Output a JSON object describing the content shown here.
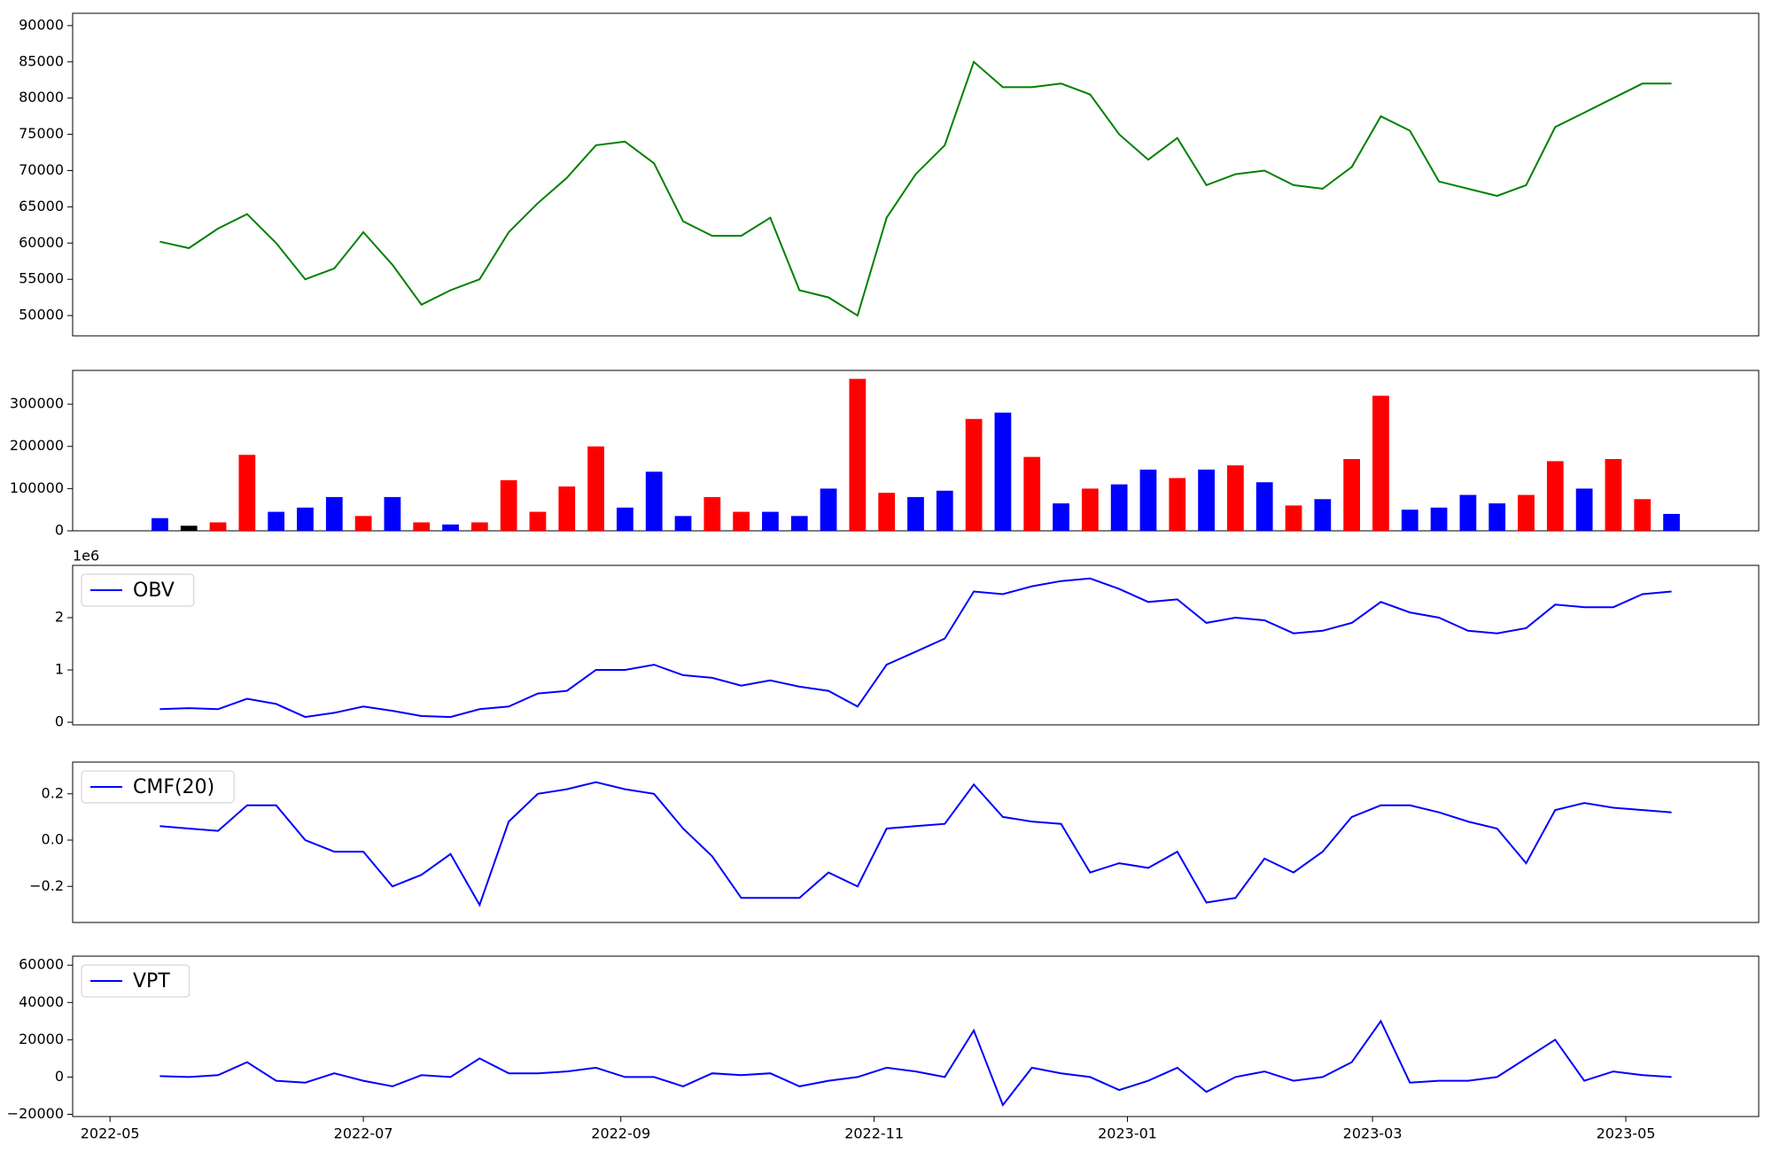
{
  "chart_data": [
    {
      "type": "line",
      "x": [
        "2022-05-13",
        "2022-05-20",
        "2022-05-27",
        "2022-06-03",
        "2022-06-10",
        "2022-06-17",
        "2022-06-24",
        "2022-07-01",
        "2022-07-08",
        "2022-07-15",
        "2022-07-22",
        "2022-07-29",
        "2022-08-05",
        "2022-08-12",
        "2022-08-19",
        "2022-08-26",
        "2022-09-02",
        "2022-09-09",
        "2022-09-16",
        "2022-09-23",
        "2022-09-30",
        "2022-10-07",
        "2022-10-14",
        "2022-10-21",
        "2022-10-28",
        "2022-11-04",
        "2022-11-11",
        "2022-11-18",
        "2022-11-25",
        "2022-12-02",
        "2022-12-09",
        "2022-12-16",
        "2022-12-23",
        "2022-12-30",
        "2023-01-06",
        "2023-01-13",
        "2023-01-20",
        "2023-01-27",
        "2023-02-03",
        "2023-02-10",
        "2023-02-17",
        "2023-02-24",
        "2023-03-03",
        "2023-03-10",
        "2023-03-17",
        "2023-03-24",
        "2023-03-31",
        "2023-04-07",
        "2023-04-14",
        "2023-04-21",
        "2023-04-28",
        "2023-05-05",
        "2023-05-12"
      ],
      "xlim": [
        "2022-04-22",
        "2023-06-02"
      ],
      "series": [
        {
          "color": "green",
          "values": [
            60200,
            59300,
            62000,
            64000,
            60000,
            55000,
            56500,
            61500,
            57000,
            51500,
            53500,
            55000,
            61500,
            65500,
            69000,
            73500,
            74000,
            71000,
            63000,
            61000,
            61000,
            63500,
            53500,
            52500,
            50000,
            63500,
            69500,
            73500,
            85000,
            81500,
            81500,
            82000,
            80500,
            75000,
            71500,
            74500,
            68000,
            69500,
            70000,
            68000,
            67500,
            70500,
            77500,
            75500,
            68500,
            67500,
            66500,
            68000,
            76000,
            78000,
            80000,
            82000,
            82000
          ]
        }
      ],
      "ylim": [
        47200,
        91700
      ],
      "yticks": [
        50000,
        55000,
        60000,
        65000,
        70000,
        75000,
        80000,
        85000,
        90000
      ]
    },
    {
      "type": "bar",
      "series": [
        {
          "values": [
            30000,
            12000,
            20000,
            180000,
            45000,
            55000,
            80000,
            35000,
            80000,
            20000,
            15000,
            20000,
            120000,
            45000,
            105000,
            200000,
            55000,
            140000,
            35000,
            80000,
            45000,
            45000,
            35000,
            100000,
            360000,
            90000,
            80000,
            95000,
            265000,
            280000,
            175000,
            65000,
            100000,
            110000,
            145000,
            125000,
            145000,
            155000,
            115000,
            60000,
            75000,
            170000,
            320000,
            50000,
            55000,
            85000,
            65000,
            85000,
            165000,
            100000,
            170000,
            75000,
            40000
          ],
          "colors": [
            "blue",
            "black",
            "red",
            "red",
            "blue",
            "blue",
            "blue",
            "red",
            "blue",
            "red",
            "blue",
            "red",
            "red",
            "red",
            "red",
            "red",
            "blue",
            "blue",
            "blue",
            "red",
            "red",
            "blue",
            "blue",
            "blue",
            "red",
            "red",
            "blue",
            "blue",
            "red",
            "blue",
            "red",
            "blue",
            "red",
            "blue",
            "blue",
            "red",
            "blue",
            "red",
            "blue",
            "red",
            "blue",
            "red",
            "red",
            "blue",
            "blue",
            "blue",
            "blue",
            "red",
            "red",
            "blue",
            "red",
            "red",
            "blue"
          ]
        }
      ],
      "ylim": [
        0,
        380000
      ],
      "yticks": [
        0,
        100000,
        200000,
        300000
      ]
    },
    {
      "type": "line",
      "offset_label": "1e6",
      "legend": "upper left",
      "series": [
        {
          "name": "OBV",
          "color": "blue",
          "values": [
            0.25,
            0.27,
            0.25,
            0.45,
            0.35,
            0.1,
            0.18,
            0.3,
            0.22,
            0.12,
            0.1,
            0.25,
            0.3,
            0.55,
            0.6,
            1.0,
            1.0,
            1.1,
            0.9,
            0.85,
            0.7,
            0.8,
            0.68,
            0.6,
            0.3,
            1.1,
            1.35,
            1.6,
            2.5,
            2.45,
            2.6,
            2.7,
            2.75,
            2.55,
            2.3,
            2.35,
            1.9,
            2.0,
            1.95,
            1.7,
            1.75,
            1.9,
            2.3,
            2.1,
            2.0,
            1.75,
            1.7,
            1.8,
            2.25,
            2.2,
            2.2,
            2.45,
            2.5
          ]
        }
      ],
      "ylim": [
        -0.05,
        3.0
      ],
      "yticks": [
        0,
        1,
        2
      ]
    },
    {
      "type": "line",
      "legend": "upper left",
      "series": [
        {
          "name": "CMF(20)",
          "color": "blue",
          "values": [
            0.06,
            0.05,
            0.04,
            0.15,
            0.15,
            0.0,
            -0.05,
            -0.05,
            -0.2,
            -0.15,
            -0.06,
            -0.28,
            0.08,
            0.2,
            0.22,
            0.25,
            0.22,
            0.2,
            0.05,
            -0.07,
            -0.25,
            -0.25,
            -0.25,
            -0.14,
            -0.2,
            0.05,
            0.06,
            0.07,
            0.24,
            0.1,
            0.08,
            0.07,
            -0.14,
            -0.1,
            -0.12,
            -0.05,
            -0.27,
            -0.25,
            -0.08,
            -0.14,
            -0.05,
            0.1,
            0.15,
            0.15,
            0.12,
            0.08,
            0.05,
            -0.1,
            0.13,
            0.16,
            0.14,
            0.13,
            0.12
          ]
        }
      ],
      "ylim": [
        -0.356,
        0.337
      ],
      "yticks": [
        {
          "value": -0.2,
          "label": "−0.2"
        },
        {
          "value": 0,
          "label": "0.0"
        },
        {
          "value": 0.2,
          "label": "0.2"
        }
      ]
    },
    {
      "type": "line",
      "legend": "upper left",
      "series": [
        {
          "name": "VPT",
          "color": "blue",
          "values": [
            500,
            0,
            1000,
            8000,
            -2000,
            -3000,
            2000,
            -2000,
            -5000,
            1000,
            0,
            10000,
            2000,
            2000,
            3000,
            5000,
            0,
            0,
            -5000,
            2000,
            1000,
            2000,
            -5000,
            -2000,
            0,
            5000,
            3000,
            0,
            25000,
            -15000,
            5000,
            2000,
            0,
            -7000,
            -2000,
            5000,
            -8000,
            0,
            3000,
            -2000,
            0,
            8000,
            30000,
            -3000,
            -2000,
            -2000,
            0,
            10000,
            20000,
            -2000,
            3000,
            1000,
            0
          ]
        }
      ],
      "ylim": [
        -21200,
        64850
      ],
      "yticks": [
        {
          "value": -20000,
          "label": "−20000"
        },
        0,
        20000,
        40000,
        60000
      ],
      "xticks": [
        {
          "value": "2022-05-01",
          "label": "2022-05"
        },
        {
          "value": "2022-07-01",
          "label": "2022-07"
        },
        {
          "value": "2022-09-01",
          "label": "2022-09"
        },
        {
          "value": "2022-11-01",
          "label": "2022-11"
        },
        {
          "value": "2023-01-01",
          "label": "2023-01"
        },
        {
          "value": "2023-03-01",
          "label": "2023-03"
        },
        {
          "value": "2023-05-01",
          "label": "2023-05"
        }
      ]
    }
  ]
}
